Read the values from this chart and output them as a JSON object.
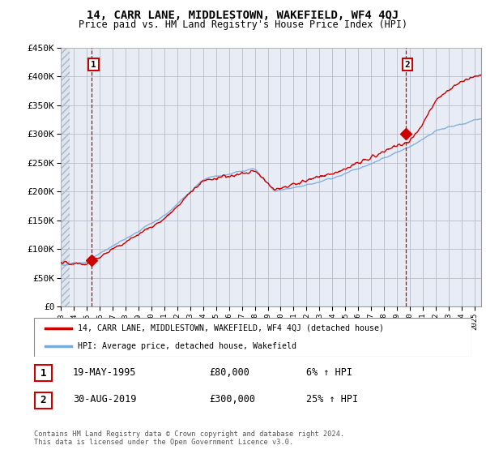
{
  "title": "14, CARR LANE, MIDDLESTOWN, WAKEFIELD, WF4 4QJ",
  "subtitle": "Price paid vs. HM Land Registry's House Price Index (HPI)",
  "ylabel_ticks": [
    "£0",
    "£50K",
    "£100K",
    "£150K",
    "£200K",
    "£250K",
    "£300K",
    "£350K",
    "£400K",
    "£450K"
  ],
  "ytick_values": [
    0,
    50000,
    100000,
    150000,
    200000,
    250000,
    300000,
    350000,
    400000,
    450000
  ],
  "ylim": [
    0,
    450000
  ],
  "xlim_start": 1993.0,
  "xlim_end": 2025.5,
  "sale1_x": 1995.38,
  "sale1_y": 80000,
  "sale2_x": 2019.66,
  "sale2_y": 300000,
  "sale1_label": "1",
  "sale2_label": "2",
  "box_color": "#cc0000",
  "line_color_hpi": "#7aaadd",
  "line_color_price": "#cc0000",
  "grid_color": "#bbbbcc",
  "plot_bg": "#e8edf5",
  "legend_label1": "14, CARR LANE, MIDDLESTOWN, WAKEFIELD, WF4 4QJ (detached house)",
  "legend_label2": "HPI: Average price, detached house, Wakefield",
  "note1_num": "1",
  "note1_date": "19-MAY-1995",
  "note1_price": "£80,000",
  "note1_hpi": "6% ↑ HPI",
  "note2_num": "2",
  "note2_date": "30-AUG-2019",
  "note2_price": "£300,000",
  "note2_hpi": "25% ↑ HPI",
  "footer": "Contains HM Land Registry data © Crown copyright and database right 2024.\nThis data is licensed under the Open Government Licence v3.0.",
  "xtick_years": [
    1993,
    1994,
    1995,
    1996,
    1997,
    1998,
    1999,
    2000,
    2001,
    2002,
    2003,
    2004,
    2005,
    2006,
    2007,
    2008,
    2009,
    2010,
    2011,
    2012,
    2013,
    2014,
    2015,
    2016,
    2017,
    2018,
    2019,
    2020,
    2021,
    2022,
    2023,
    2024,
    2025
  ]
}
